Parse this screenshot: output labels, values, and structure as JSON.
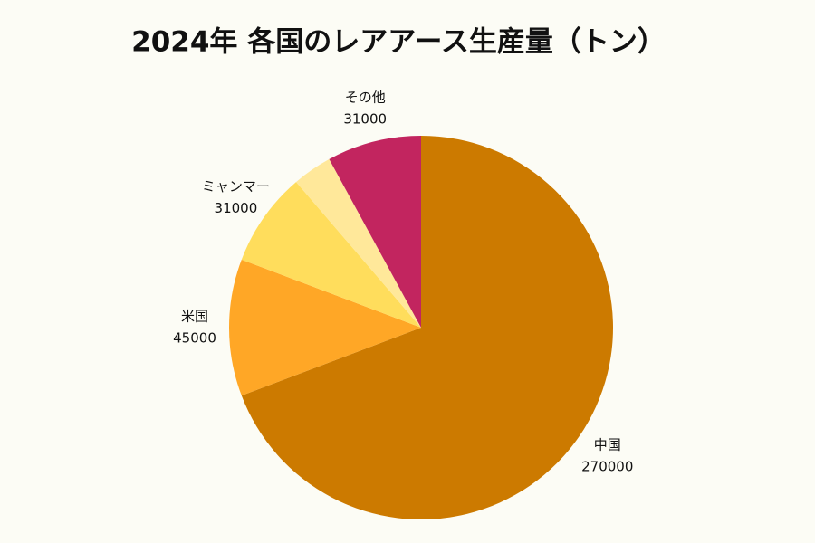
{
  "chart_data": {
    "type": "pie",
    "title": "2024年 各国のレアアース生産量（トン）",
    "categories": [
      "中国",
      "米国",
      "ミャンマー",
      null,
      "その他"
    ],
    "values": [
      270000,
      45000,
      31000,
      13000,
      31000
    ],
    "colors": [
      "#cc7a00",
      "#ffa726",
      "#ffdd5c",
      "#ffe89a",
      "#c2255f"
    ]
  }
}
